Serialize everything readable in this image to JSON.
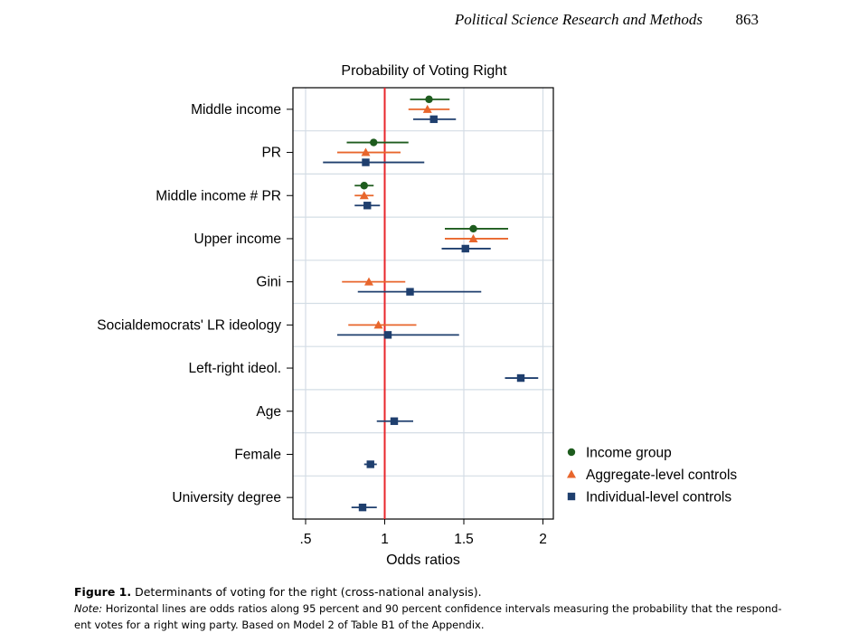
{
  "header": {
    "journal": "Political Science Research and Methods",
    "page": "863"
  },
  "chart_data": {
    "type": "scatter",
    "subtype": "coefficient-plot",
    "title": "Probability of Voting Right",
    "xlabel": "Odds ratios",
    "ylabel": "",
    "xlim": [
      0.4,
      2.1
    ],
    "xticks": [
      0.5,
      1,
      1.5,
      2
    ],
    "xtick_labels": [
      ".5",
      "1",
      "1.5",
      "2"
    ],
    "reference_line": 1,
    "grid": true,
    "legend_position": "right",
    "categories": [
      "Middle income",
      "PR",
      "Middle income # PR",
      "Upper income",
      "Gini",
      "Socialdemocrats' LR ideology",
      "Left-right ideol.",
      "Age",
      "Female",
      "University degree"
    ],
    "series": [
      {
        "name": "Income group",
        "marker": "circle",
        "color": "#1e5c1e",
        "points": [
          {
            "category": "Middle income",
            "value": 1.28,
            "lo": 1.16,
            "hi": 1.41
          },
          {
            "category": "PR",
            "value": 0.93,
            "lo": 0.76,
            "hi": 1.15
          },
          {
            "category": "Middle income # PR",
            "value": 0.87,
            "lo": 0.81,
            "hi": 0.93
          },
          {
            "category": "Upper income",
            "value": 1.56,
            "lo": 1.38,
            "hi": 1.78
          }
        ]
      },
      {
        "name": "Aggregate-level controls",
        "marker": "triangle",
        "color": "#e8662c",
        "points": [
          {
            "category": "Middle income",
            "value": 1.27,
            "lo": 1.15,
            "hi": 1.41
          },
          {
            "category": "PR",
            "value": 0.88,
            "lo": 0.7,
            "hi": 1.1
          },
          {
            "category": "Middle income # PR",
            "value": 0.87,
            "lo": 0.81,
            "hi": 0.93
          },
          {
            "category": "Upper income",
            "value": 1.56,
            "lo": 1.38,
            "hi": 1.78
          },
          {
            "category": "Gini",
            "value": 0.9,
            "lo": 0.73,
            "hi": 1.13
          },
          {
            "category": "Socialdemocrats' LR ideology",
            "value": 0.96,
            "lo": 0.77,
            "hi": 1.2
          }
        ]
      },
      {
        "name": "Individual-level controls",
        "marker": "square",
        "color": "#1f3f6e",
        "points": [
          {
            "category": "Middle income",
            "value": 1.31,
            "lo": 1.18,
            "hi": 1.45
          },
          {
            "category": "PR",
            "value": 0.88,
            "lo": 0.61,
            "hi": 1.25
          },
          {
            "category": "Middle income # PR",
            "value": 0.89,
            "lo": 0.81,
            "hi": 0.97
          },
          {
            "category": "Upper income",
            "value": 1.51,
            "lo": 1.36,
            "hi": 1.67
          },
          {
            "category": "Gini",
            "value": 1.16,
            "lo": 0.83,
            "hi": 1.61
          },
          {
            "category": "Socialdemocrats' LR ideology",
            "value": 1.02,
            "lo": 0.7,
            "hi": 1.47
          },
          {
            "category": "Left-right ideol.",
            "value": 1.86,
            "lo": 1.76,
            "hi": 1.97
          },
          {
            "category": "Age",
            "value": 1.06,
            "lo": 0.95,
            "hi": 1.18
          },
          {
            "category": "Female",
            "value": 0.91,
            "lo": 0.87,
            "hi": 0.95
          },
          {
            "category": "University degree",
            "value": 0.86,
            "lo": 0.79,
            "hi": 0.95
          }
        ]
      }
    ]
  },
  "caption": {
    "label": "Figure 1.",
    "text": "Determinants of voting for the right (cross-national analysis).",
    "note_label": "Note:",
    "note_text": "Horizontal lines are odds ratios along 95 percent and 90 percent confidence intervals measuring the probability that the respond-",
    "note_text2": "ent votes for a right wing party. Based on Model 2 of Table B1 of the Appendix."
  }
}
